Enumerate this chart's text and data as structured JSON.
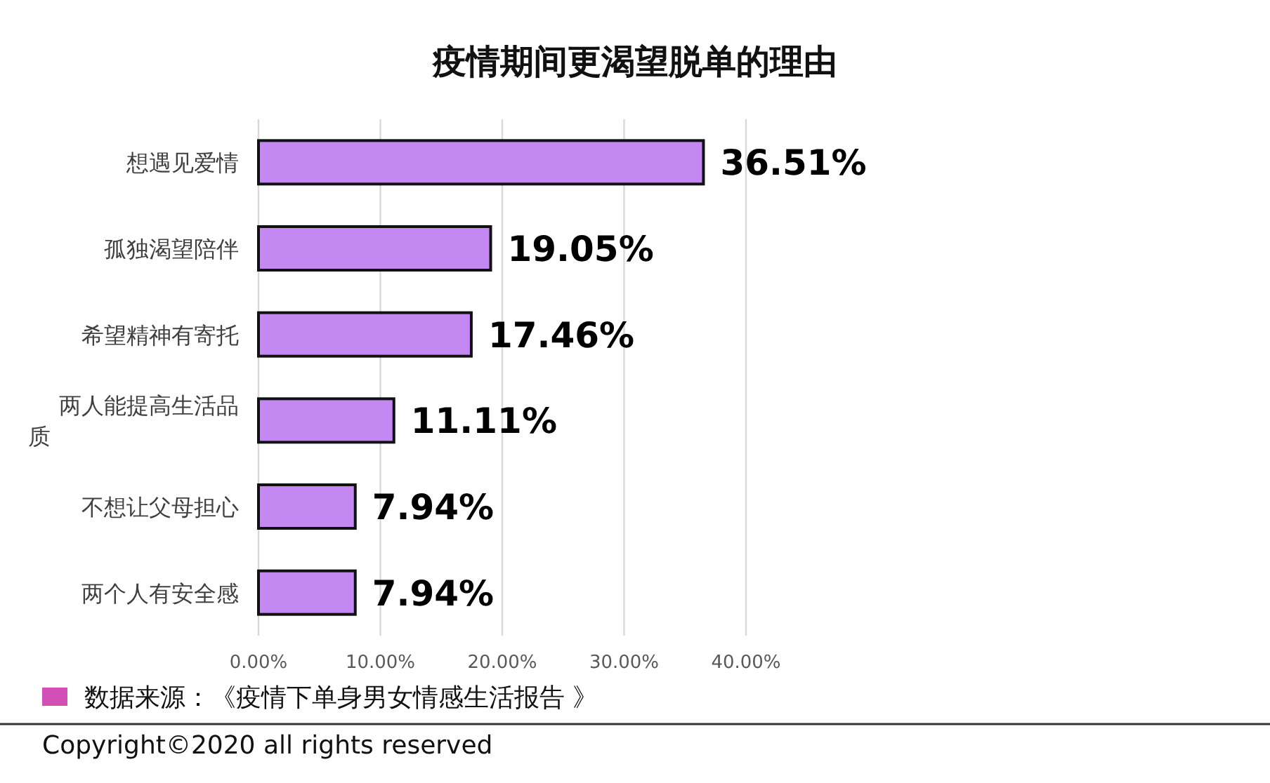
{
  "chart_data": {
    "type": "bar",
    "orientation": "horizontal",
    "title": "疫情期间更渴望脱单的理由",
    "categories": [
      "想遇见爱情",
      "孤独渴望陪伴",
      "希望精神有寄托",
      "两人能提高生活品质",
      "不想让父母担心",
      "两个人有安全感"
    ],
    "values": [
      36.51,
      19.05,
      17.46,
      11.11,
      7.94,
      7.94
    ],
    "value_labels": [
      "36.51%",
      "19.05%",
      "17.46%",
      "11.11%",
      "7.94%",
      "7.94%"
    ],
    "color": "#c388f2",
    "xlim": [
      0,
      40
    ],
    "xticks": [
      {
        "value": 0,
        "label": "0.00%"
      },
      {
        "value": 10,
        "label": "10.00%"
      },
      {
        "value": 20,
        "label": "20.00%"
      },
      {
        "value": 30,
        "label": "30.00%"
      },
      {
        "value": 40,
        "label": "40.00%"
      }
    ],
    "grid": "x",
    "annotations": [
      "数据来源：《疫情下单身男女情感生活报告 》",
      "Copyright©2020  all rights reserved"
    ]
  }
}
